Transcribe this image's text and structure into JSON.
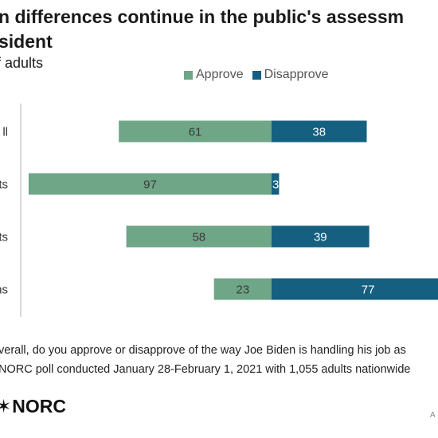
{
  "title": "n differences continue in the public's assessm\nsident",
  "title_lines": [
    "n differences continue in the public's assessm",
    "sident"
  ],
  "subtitle": "f adults",
  "legend": {
    "approve": "Approve",
    "disapprove": "Disapprove"
  },
  "colors": {
    "approve": "#6fa687",
    "disapprove": "#155f80",
    "axis": "#cccccc"
  },
  "chart_data": {
    "type": "bar",
    "orientation": "horizontal-diverging",
    "categories": [
      "ll",
      "ts",
      "ts",
      "ns"
    ],
    "series": [
      {
        "name": "Approve",
        "values": [
          61,
          97,
          58,
          23
        ]
      },
      {
        "name": "Disapprove",
        "values": [
          38,
          3,
          39,
          77
        ]
      }
    ],
    "title": "n differences continue in the public's assessm sident",
    "xlabel": "",
    "ylabel": "",
    "legend_position": "top-right",
    "grid": false
  },
  "footnotes": [
    "verall, do you approve or disapprove of the way Joe Biden is handling his job as",
    "NORC poll conducted January 28-February 1, 2021 with 1,055 adults nationwide"
  ],
  "logo": {
    "mark": "✶",
    "text": "NORC"
  },
  "corner_mark": "A"
}
